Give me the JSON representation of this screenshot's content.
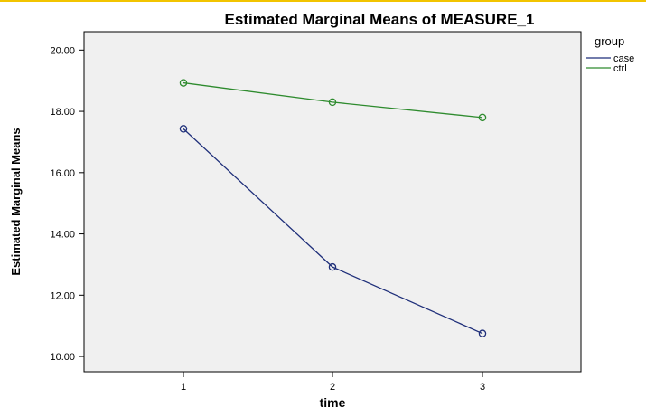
{
  "chart_data": {
    "type": "line",
    "title": "Estimated Marginal Means of MEASURE_1",
    "xlabel": "time",
    "ylabel": "Estimated Marginal Means",
    "categories": [
      "1",
      "2",
      "3"
    ],
    "ylim": [
      9.5,
      20.6
    ],
    "yticks": [
      10.0,
      12.0,
      14.0,
      16.0,
      18.0,
      20.0
    ],
    "ytick_labels": [
      "10.00",
      "12.00",
      "14.00",
      "16.00",
      "18.00",
      "20.00"
    ],
    "grid": false,
    "plot_background": "#f0f0f0",
    "legend": {
      "title": "group",
      "placement": "right"
    },
    "series": [
      {
        "name": "case",
        "color": "#1f2f7a",
        "values": [
          17.43,
          12.92,
          10.75
        ]
      },
      {
        "name": "ctrl",
        "color": "#2e8b2e",
        "values": [
          18.93,
          18.3,
          17.8
        ]
      }
    ]
  }
}
